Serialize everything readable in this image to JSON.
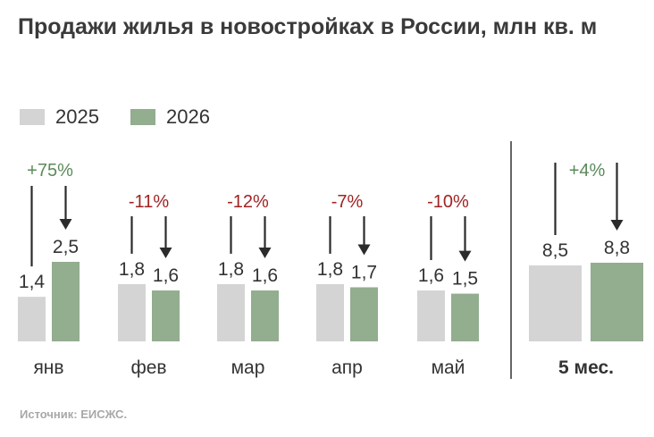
{
  "title": "Продажи жилья в новостройках в России, млн кв. м",
  "legend": [
    {
      "label": "2025",
      "color": "#d4d4d4"
    },
    {
      "label": "2026",
      "color": "#93ad8f"
    }
  ],
  "colors": {
    "increase": "#5a8a5a",
    "decrease": "#a02323",
    "arrow": "#2b2b2b",
    "axis": "#666666"
  },
  "chart_data": {
    "type": "bar",
    "categories": [
      "янв",
      "фев",
      "мар",
      "апр",
      "май",
      "5 мес."
    ],
    "series": [
      {
        "name": "2025",
        "values": [
          1.4,
          1.8,
          1.8,
          1.8,
          1.6,
          8.5
        ],
        "labels": [
          "1,4",
          "1,8",
          "1,8",
          "1,8",
          "1,6",
          "8,5"
        ]
      },
      {
        "name": "2026",
        "values": [
          2.5,
          1.6,
          1.6,
          1.7,
          1.5,
          8.8
        ],
        "labels": [
          "2,5",
          "1,6",
          "1,6",
          "1,7",
          "1,5",
          "8,8"
        ]
      }
    ],
    "changes": [
      "+75%",
      "-11%",
      "-12%",
      "-7%",
      "-10%",
      "+4%"
    ]
  },
  "source": "Источник: ЕИСЖС."
}
